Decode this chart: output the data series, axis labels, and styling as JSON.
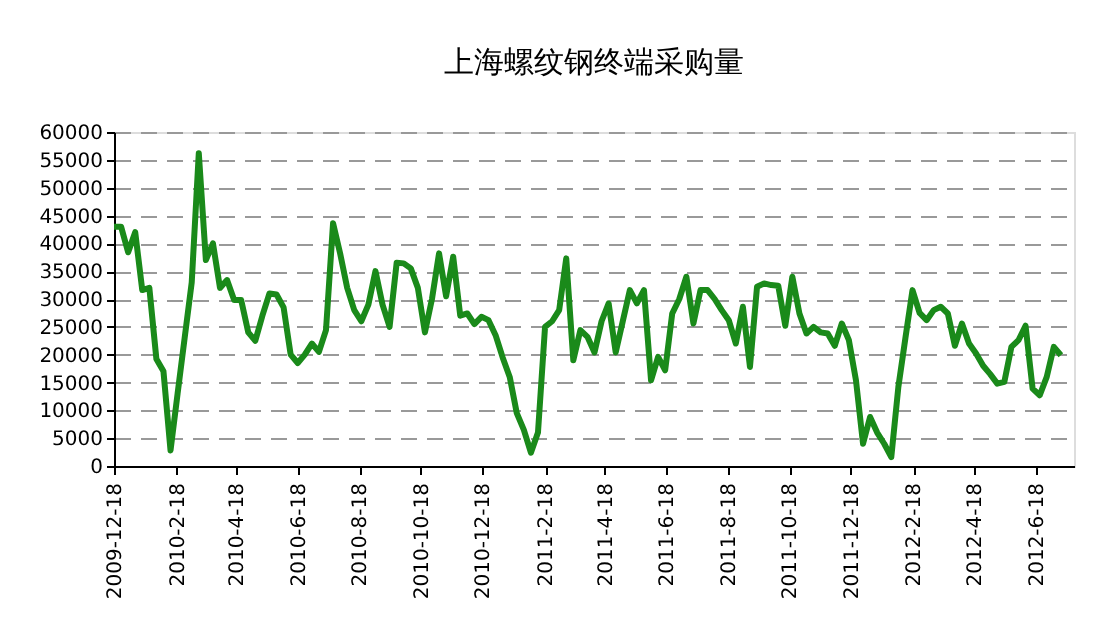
{
  "chart_data": {
    "type": "line",
    "title": "上海螺纹钢终端采购量",
    "x": [
      "2009-12-18",
      "2009-12-25",
      "2010-01-01",
      "2010-01-08",
      "2010-01-15",
      "2010-01-22",
      "2010-01-29",
      "2010-02-05",
      "2010-02-12",
      "2010-02-19",
      "2010-02-26",
      "2010-03-05",
      "2010-03-12",
      "2010-03-19",
      "2010-03-26",
      "2010-04-02",
      "2010-04-09",
      "2010-04-16",
      "2010-04-23",
      "2010-04-30",
      "2010-05-07",
      "2010-05-14",
      "2010-05-21",
      "2010-05-28",
      "2010-06-04",
      "2010-06-11",
      "2010-06-18",
      "2010-06-25",
      "2010-07-02",
      "2010-07-09",
      "2010-07-16",
      "2010-07-23",
      "2010-07-30",
      "2010-08-06",
      "2010-08-13",
      "2010-08-20",
      "2010-08-27",
      "2010-09-03",
      "2010-09-10",
      "2010-09-17",
      "2010-09-24",
      "2010-10-01",
      "2010-10-08",
      "2010-10-15",
      "2010-10-22",
      "2010-10-29",
      "2010-11-05",
      "2010-11-12",
      "2010-11-19",
      "2010-11-26",
      "2010-12-03",
      "2010-12-10",
      "2010-12-17",
      "2010-12-24",
      "2010-12-31",
      "2011-01-07",
      "2011-01-14",
      "2011-01-21",
      "2011-01-28",
      "2011-02-04",
      "2011-02-11",
      "2011-02-18",
      "2011-02-25",
      "2011-03-04",
      "2011-03-11",
      "2011-03-18",
      "2011-03-25",
      "2011-04-01",
      "2011-04-08",
      "2011-04-15",
      "2011-04-22",
      "2011-04-29",
      "2011-05-06",
      "2011-05-13",
      "2011-05-20",
      "2011-05-27",
      "2011-06-03",
      "2011-06-10",
      "2011-06-17",
      "2011-06-24",
      "2011-07-01",
      "2011-07-08",
      "2011-07-15",
      "2011-07-22",
      "2011-07-29",
      "2011-08-05",
      "2011-08-12",
      "2011-08-19",
      "2011-08-26",
      "2011-09-02",
      "2011-09-09",
      "2011-09-16",
      "2011-09-23",
      "2011-09-30",
      "2011-10-07",
      "2011-10-14",
      "2011-10-21",
      "2011-10-28",
      "2011-11-04",
      "2011-11-11",
      "2011-11-18",
      "2011-11-25",
      "2011-12-02",
      "2011-12-09",
      "2011-12-16",
      "2011-12-23",
      "2011-12-30",
      "2012-01-06",
      "2012-01-13",
      "2012-01-20",
      "2012-01-27",
      "2012-02-03",
      "2012-02-10",
      "2012-02-17",
      "2012-02-24",
      "2012-03-02",
      "2012-03-09",
      "2012-03-16",
      "2012-03-23",
      "2012-03-30",
      "2012-04-06",
      "2012-04-13",
      "2012-04-20",
      "2012-04-27",
      "2012-05-04",
      "2012-05-11",
      "2012-05-18",
      "2012-05-25",
      "2012-06-01",
      "2012-06-08",
      "2012-06-15",
      "2012-06-22",
      "2012-06-29",
      "2012-07-06",
      "2012-07-13"
    ],
    "series": [
      {
        "color": "#1a8a1a",
        "values": [
          43000,
          43000,
          38400,
          42000,
          31600,
          32000,
          19200,
          17000,
          2800,
          13000,
          23000,
          33000,
          56200,
          37000,
          40000,
          32000,
          33400,
          29800,
          29800,
          24000,
          22500,
          27000,
          31000,
          30800,
          28500,
          20000,
          18500,
          20000,
          22000,
          20500,
          24400,
          43600,
          38200,
          32000,
          28000,
          26000,
          29000,
          35000,
          29000,
          25000,
          36500,
          36400,
          35500,
          32000,
          24000,
          30000,
          38200,
          30500,
          37600,
          27000,
          27400,
          25500,
          26800,
          26200,
          23500,
          19500,
          16000,
          9500,
          6500,
          2400,
          6000,
          25000,
          26000,
          28000,
          37300,
          19000,
          24400,
          23200,
          20400,
          26000,
          29200,
          20400,
          26000,
          31600,
          29200,
          31600,
          15400,
          19600,
          17200,
          27400,
          30000,
          34000,
          25600,
          31600,
          31600,
          30000,
          28000,
          26200,
          22000,
          28600,
          17800,
          32200,
          32800,
          32500,
          32400,
          25200,
          34000,
          27400,
          23800,
          25000,
          24000,
          23800,
          21600,
          25600,
          22600,
          15400,
          4000,
          8800,
          6000,
          4000,
          1600,
          14200,
          23000,
          31600,
          27500,
          26200,
          28000,
          28600,
          27400,
          21600,
          25600,
          22000,
          20200,
          18000,
          16500,
          14800,
          15100,
          21400,
          22600,
          25200,
          13900,
          12700,
          16000,
          21400,
          19900
        ]
      }
    ],
    "xlim": [
      "2009-12-18",
      "2012-07-26"
    ],
    "xticks": [
      {
        "value": "2009-12-18",
        "label": "2009-12-18"
      },
      {
        "value": "2010-02-18",
        "label": "2010-2-18"
      },
      {
        "value": "2010-04-18",
        "label": "2010-4-18"
      },
      {
        "value": "2010-06-18",
        "label": "2010-6-18"
      },
      {
        "value": "2010-08-18",
        "label": "2010-8-18"
      },
      {
        "value": "2010-10-18",
        "label": "2010-10-18"
      },
      {
        "value": "2010-12-18",
        "label": "2010-12-18"
      },
      {
        "value": "2011-02-18",
        "label": "2011-2-18"
      },
      {
        "value": "2011-04-18",
        "label": "2011-4-18"
      },
      {
        "value": "2011-06-18",
        "label": "2011-6-18"
      },
      {
        "value": "2011-08-18",
        "label": "2011-8-18"
      },
      {
        "value": "2011-10-18",
        "label": "2011-10-18"
      },
      {
        "value": "2011-12-18",
        "label": "2011-12-18"
      },
      {
        "value": "2012-02-18",
        "label": "2012-2-18"
      },
      {
        "value": "2012-04-18",
        "label": "2012-4-18"
      },
      {
        "value": "2012-06-18",
        "label": "2012-6-18"
      }
    ],
    "ylim": [
      0,
      60000
    ],
    "yticks": [
      0,
      5000,
      10000,
      15000,
      20000,
      25000,
      30000,
      35000,
      40000,
      45000,
      50000,
      55000,
      60000
    ],
    "grid": "y",
    "marker": "none",
    "line_style": "solid"
  }
}
